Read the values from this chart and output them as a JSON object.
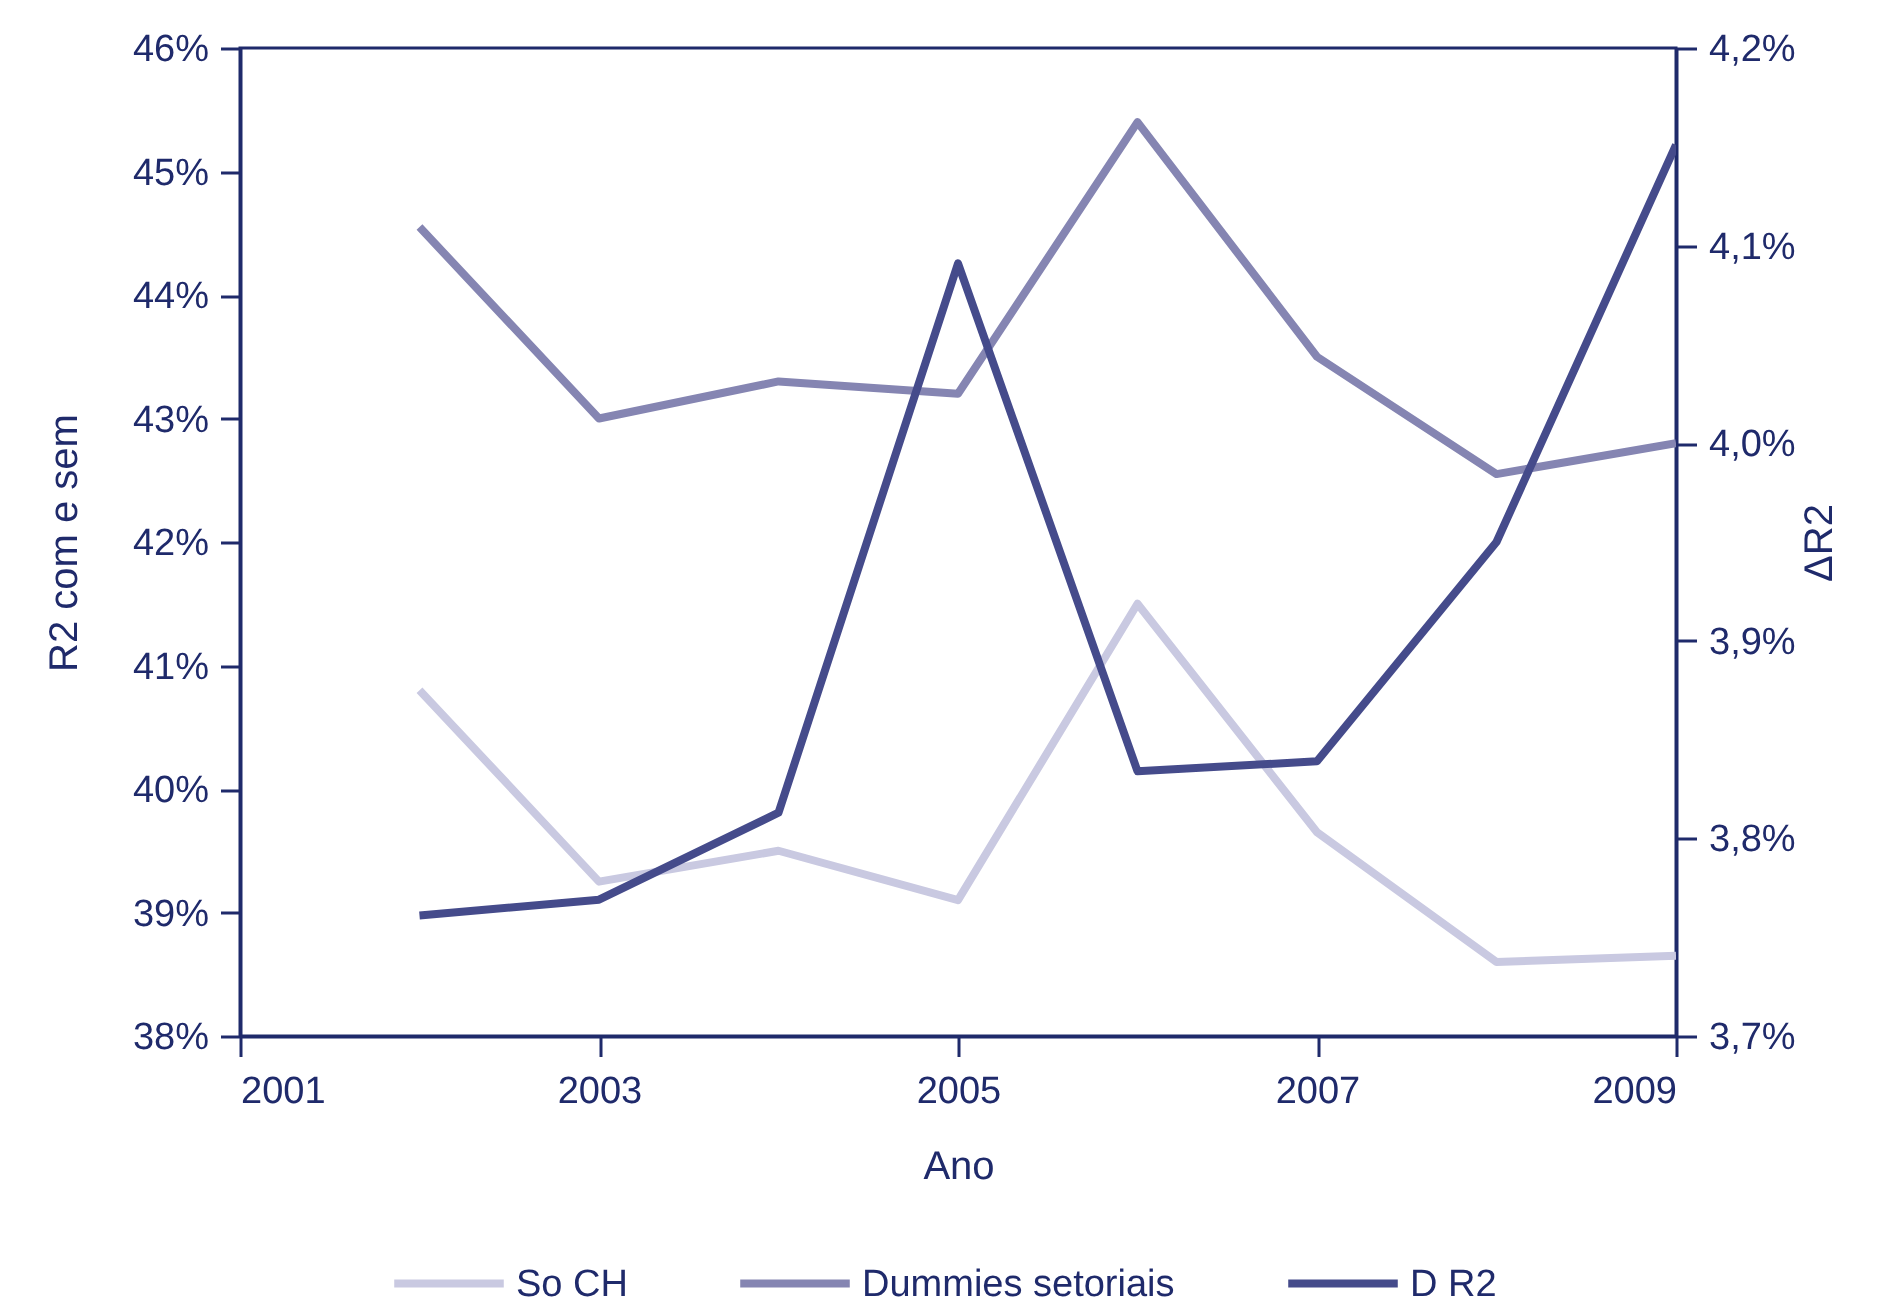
{
  "chart_data": {
    "type": "line",
    "xlabel": "Ano",
    "ylabel": "R2 com e sem",
    "y2label": "ΔR2",
    "x": [
      2002,
      2003,
      2004,
      2005,
      2006,
      2007,
      2008,
      2009
    ],
    "xlim": [
      2001,
      2009
    ],
    "xticks": [
      2001,
      2003,
      2005,
      2007,
      2009
    ],
    "ylim": [
      38,
      46
    ],
    "yticks": [
      {
        "value": 38,
        "label": "38%"
      },
      {
        "value": 39,
        "label": "39%"
      },
      {
        "value": 40,
        "label": "40%"
      },
      {
        "value": 41,
        "label": "41%"
      },
      {
        "value": 42,
        "label": "42%"
      },
      {
        "value": 43,
        "label": "43%"
      },
      {
        "value": 44,
        "label": "44%"
      },
      {
        "value": 45,
        "label": "45%"
      },
      {
        "value": 46,
        "label": "46%"
      }
    ],
    "y2lim": [
      3.7,
      4.2
    ],
    "y2ticks": [
      {
        "value": 3.7,
        "label": "3,7%"
      },
      {
        "value": 3.8,
        "label": "3,8%"
      },
      {
        "value": 3.9,
        "label": "3,9%"
      },
      {
        "value": 4.0,
        "label": "4,0%"
      },
      {
        "value": 4.1,
        "label": "4,1%"
      },
      {
        "value": 4.2,
        "label": "4,2%"
      }
    ],
    "series": [
      {
        "name": "So CH",
        "color": "#c9c9e1",
        "values": [
          40.8,
          39.25,
          39.5,
          39.1,
          41.5,
          39.65,
          38.6,
          38.65
        ]
      },
      {
        "name": "Dummies setoriais",
        "color": "#8585b2",
        "values": [
          44.55,
          43.0,
          43.3,
          43.2,
          45.4,
          43.5,
          42.55,
          42.8
        ]
      },
      {
        "name": "D R2",
        "color": "#454b8b",
        "axis": "y2",
        "values": [
          3.761,
          3.769,
          3.813,
          4.091,
          3.834,
          3.839,
          3.95,
          4.151
        ]
      }
    ],
    "grid": false,
    "legend": "bottom"
  }
}
